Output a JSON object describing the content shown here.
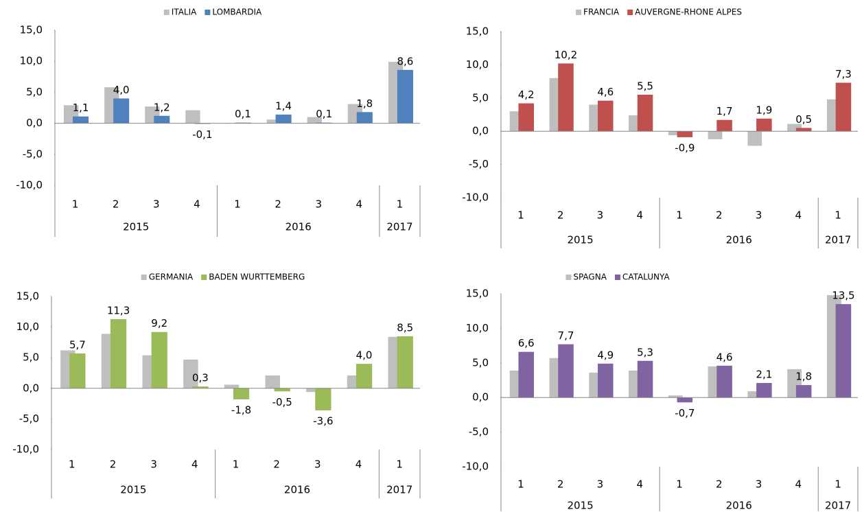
{
  "chart_data": [
    {
      "type": "bar",
      "groups": [
        {
          "label": "2015",
          "categories": [
            "1",
            "2",
            "3",
            "4"
          ]
        },
        {
          "label": "2016",
          "categories": [
            "1",
            "2",
            "3",
            "4"
          ]
        },
        {
          "label": "2017",
          "categories": [
            "1"
          ]
        }
      ],
      "series": [
        {
          "name": "ITALIA",
          "color": "#bfbfbf",
          "values": [
            2.9,
            5.8,
            2.7,
            2.1,
            0.05,
            0.6,
            1.0,
            3.1,
            9.9
          ]
        },
        {
          "name": "LOMBARDIA",
          "color": "#4f81bd",
          "values": [
            1.1,
            4.0,
            1.2,
            -0.1,
            0.1,
            1.4,
            0.1,
            1.8,
            8.6
          ],
          "value_labels": [
            "1,1",
            "4,0",
            "1,2",
            "-0,1",
            "0,1",
            "1,4",
            "0,1",
            "1,8",
            "8,6"
          ]
        }
      ],
      "ylim": [
        -10,
        15
      ],
      "yticks": [
        {
          "value": -10,
          "label": "-10,0"
        },
        {
          "value": -5,
          "label": "-5,0"
        },
        {
          "value": 0,
          "label": "0,0"
        },
        {
          "value": 5,
          "label": "5,0"
        },
        {
          "value": 10,
          "label": "10,0"
        },
        {
          "value": 15,
          "label": "15,0"
        }
      ],
      "legend": "top"
    },
    {
      "type": "bar",
      "groups": [
        {
          "label": "2015",
          "categories": [
            "1",
            "2",
            "3",
            "4"
          ]
        },
        {
          "label": "2016",
          "categories": [
            "1",
            "2",
            "3",
            "4"
          ]
        },
        {
          "label": "2017",
          "categories": [
            "1"
          ]
        }
      ],
      "series": [
        {
          "name": "FRANCIA",
          "color": "#bfbfbf",
          "values": [
            3.0,
            8.0,
            4.0,
            2.4,
            -0.6,
            -1.2,
            -2.2,
            1.1,
            4.8
          ]
        },
        {
          "name": "AUVERGNE-RHONE ALPES",
          "color": "#c0504d",
          "values": [
            4.2,
            10.2,
            4.6,
            5.5,
            -0.9,
            1.7,
            1.9,
            0.5,
            7.3
          ],
          "value_labels": [
            "4,2",
            "10,2",
            "4,6",
            "5,5",
            "-0,9",
            "1,7",
            "1,9",
            "0,5",
            "7,3"
          ]
        }
      ],
      "ylim": [
        -10,
        15
      ],
      "yticks": [
        {
          "value": -10,
          "label": "-10,0"
        },
        {
          "value": -5,
          "label": "-5,0"
        },
        {
          "value": 0,
          "label": "0,0"
        },
        {
          "value": 5,
          "label": "5,0"
        },
        {
          "value": 10,
          "label": "10,0"
        },
        {
          "value": 15,
          "label": "15,0"
        }
      ],
      "legend": "top"
    },
    {
      "type": "bar",
      "groups": [
        {
          "label": "2015",
          "categories": [
            "1",
            "2",
            "3",
            "4"
          ]
        },
        {
          "label": "2016",
          "categories": [
            "1",
            "2",
            "3",
            "4"
          ]
        },
        {
          "label": "2017",
          "categories": [
            "1"
          ]
        }
      ],
      "series": [
        {
          "name": "GERMANIA",
          "color": "#bfbfbf",
          "values": [
            6.2,
            8.9,
            5.4,
            4.7,
            0.6,
            2.1,
            -0.6,
            2.1,
            8.4
          ]
        },
        {
          "name": "BADEN WURTTEMBERG",
          "color": "#9bbb59",
          "values": [
            5.7,
            11.3,
            9.2,
            0.3,
            -1.8,
            -0.5,
            -3.6,
            4.0,
            8.5
          ],
          "value_labels": [
            "5,7",
            "11,3",
            "9,2",
            "0,3",
            "-1,8",
            "-0,5",
            "-3,6",
            "4,0",
            "8,5"
          ]
        }
      ],
      "ylim": [
        -10,
        15
      ],
      "yticks": [
        {
          "value": -10,
          "label": "-10,0"
        },
        {
          "value": -5,
          "label": "-5,0"
        },
        {
          "value": 0,
          "label": "0,0"
        },
        {
          "value": 5,
          "label": "5,0"
        },
        {
          "value": 10,
          "label": "10,0"
        },
        {
          "value": 15,
          "label": "15,0"
        }
      ],
      "legend": "top"
    },
    {
      "type": "bar",
      "groups": [
        {
          "label": "2015",
          "categories": [
            "1",
            "2",
            "3",
            "4"
          ]
        },
        {
          "label": "2016",
          "categories": [
            "1",
            "2",
            "3",
            "4"
          ]
        },
        {
          "label": "2017",
          "categories": [
            "1"
          ]
        }
      ],
      "series": [
        {
          "name": "SPAGNA",
          "color": "#bfbfbf",
          "values": [
            3.9,
            5.7,
            3.6,
            3.9,
            0.3,
            4.5,
            0.9,
            4.1,
            14.8
          ]
        },
        {
          "name": "CATALUNYA",
          "color": "#8064a2",
          "values": [
            6.6,
            7.7,
            4.9,
            5.3,
            -0.7,
            4.6,
            2.1,
            1.8,
            13.5
          ],
          "value_labels": [
            "6,6",
            "7,7",
            "4,9",
            "5,3",
            "-0,7",
            "4,6",
            "2,1",
            "1,8",
            "13,5"
          ]
        }
      ],
      "ylim": [
        -10,
        15
      ],
      "yticks": [
        {
          "value": -10,
          "label": "-10,0"
        },
        {
          "value": -5,
          "label": "-5,0"
        },
        {
          "value": 0,
          "label": "0,0"
        },
        {
          "value": 5,
          "label": "5,0"
        },
        {
          "value": 10,
          "label": "10,0"
        },
        {
          "value": 15,
          "label": "15,0"
        }
      ],
      "legend": "top"
    }
  ]
}
